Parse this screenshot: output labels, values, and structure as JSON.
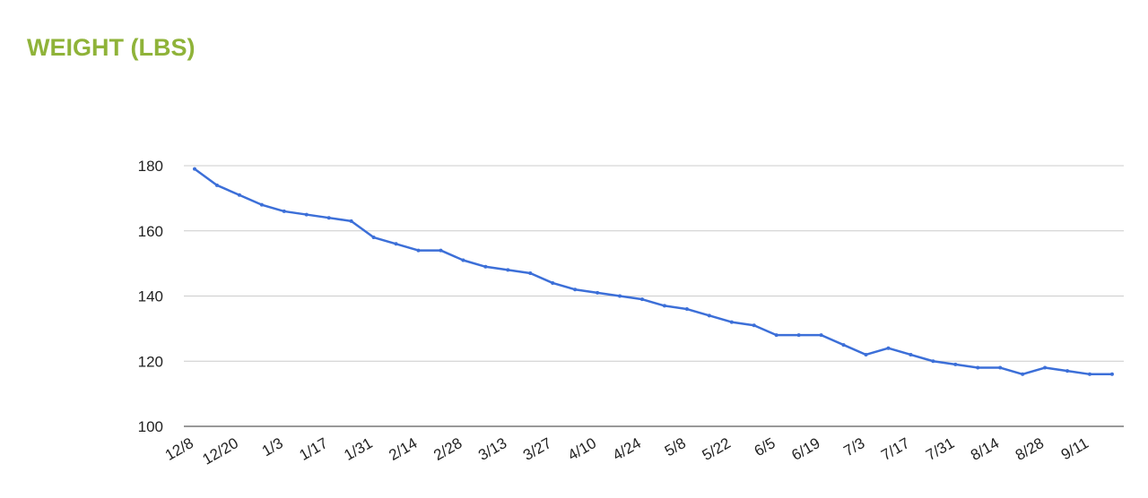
{
  "chart_data": {
    "type": "line",
    "title": "WEIGHT (LBS)",
    "categories": [
      "12/8",
      null,
      "12/20",
      null,
      "1/3",
      null,
      "1/17",
      null,
      "1/31",
      null,
      "2/14",
      null,
      "2/28",
      null,
      "3/13",
      null,
      "3/27",
      null,
      "4/10",
      null,
      "4/24",
      null,
      "5/8",
      null,
      "5/22",
      null,
      "6/5",
      null,
      "6/19",
      null,
      "7/3",
      null,
      "7/17",
      null,
      "7/31",
      null,
      "8/14",
      null,
      "8/28",
      null,
      "9/11",
      null
    ],
    "series": [
      {
        "name": "Weight",
        "color": "#3c6fd8",
        "values": [
          179,
          174,
          171,
          168,
          166,
          165,
          164,
          163,
          158,
          156,
          154,
          154,
          151,
          149,
          148,
          147,
          144,
          142,
          141,
          140,
          139,
          137,
          136,
          134,
          132,
          131,
          128,
          128,
          128,
          125,
          122,
          124,
          122,
          120,
          119,
          118,
          118,
          116,
          118,
          117,
          116,
          116
        ]
      }
    ],
    "ylim": [
      100,
      180
    ],
    "yticks": [
      100,
      120,
      140,
      160,
      180
    ],
    "grid": true
  }
}
